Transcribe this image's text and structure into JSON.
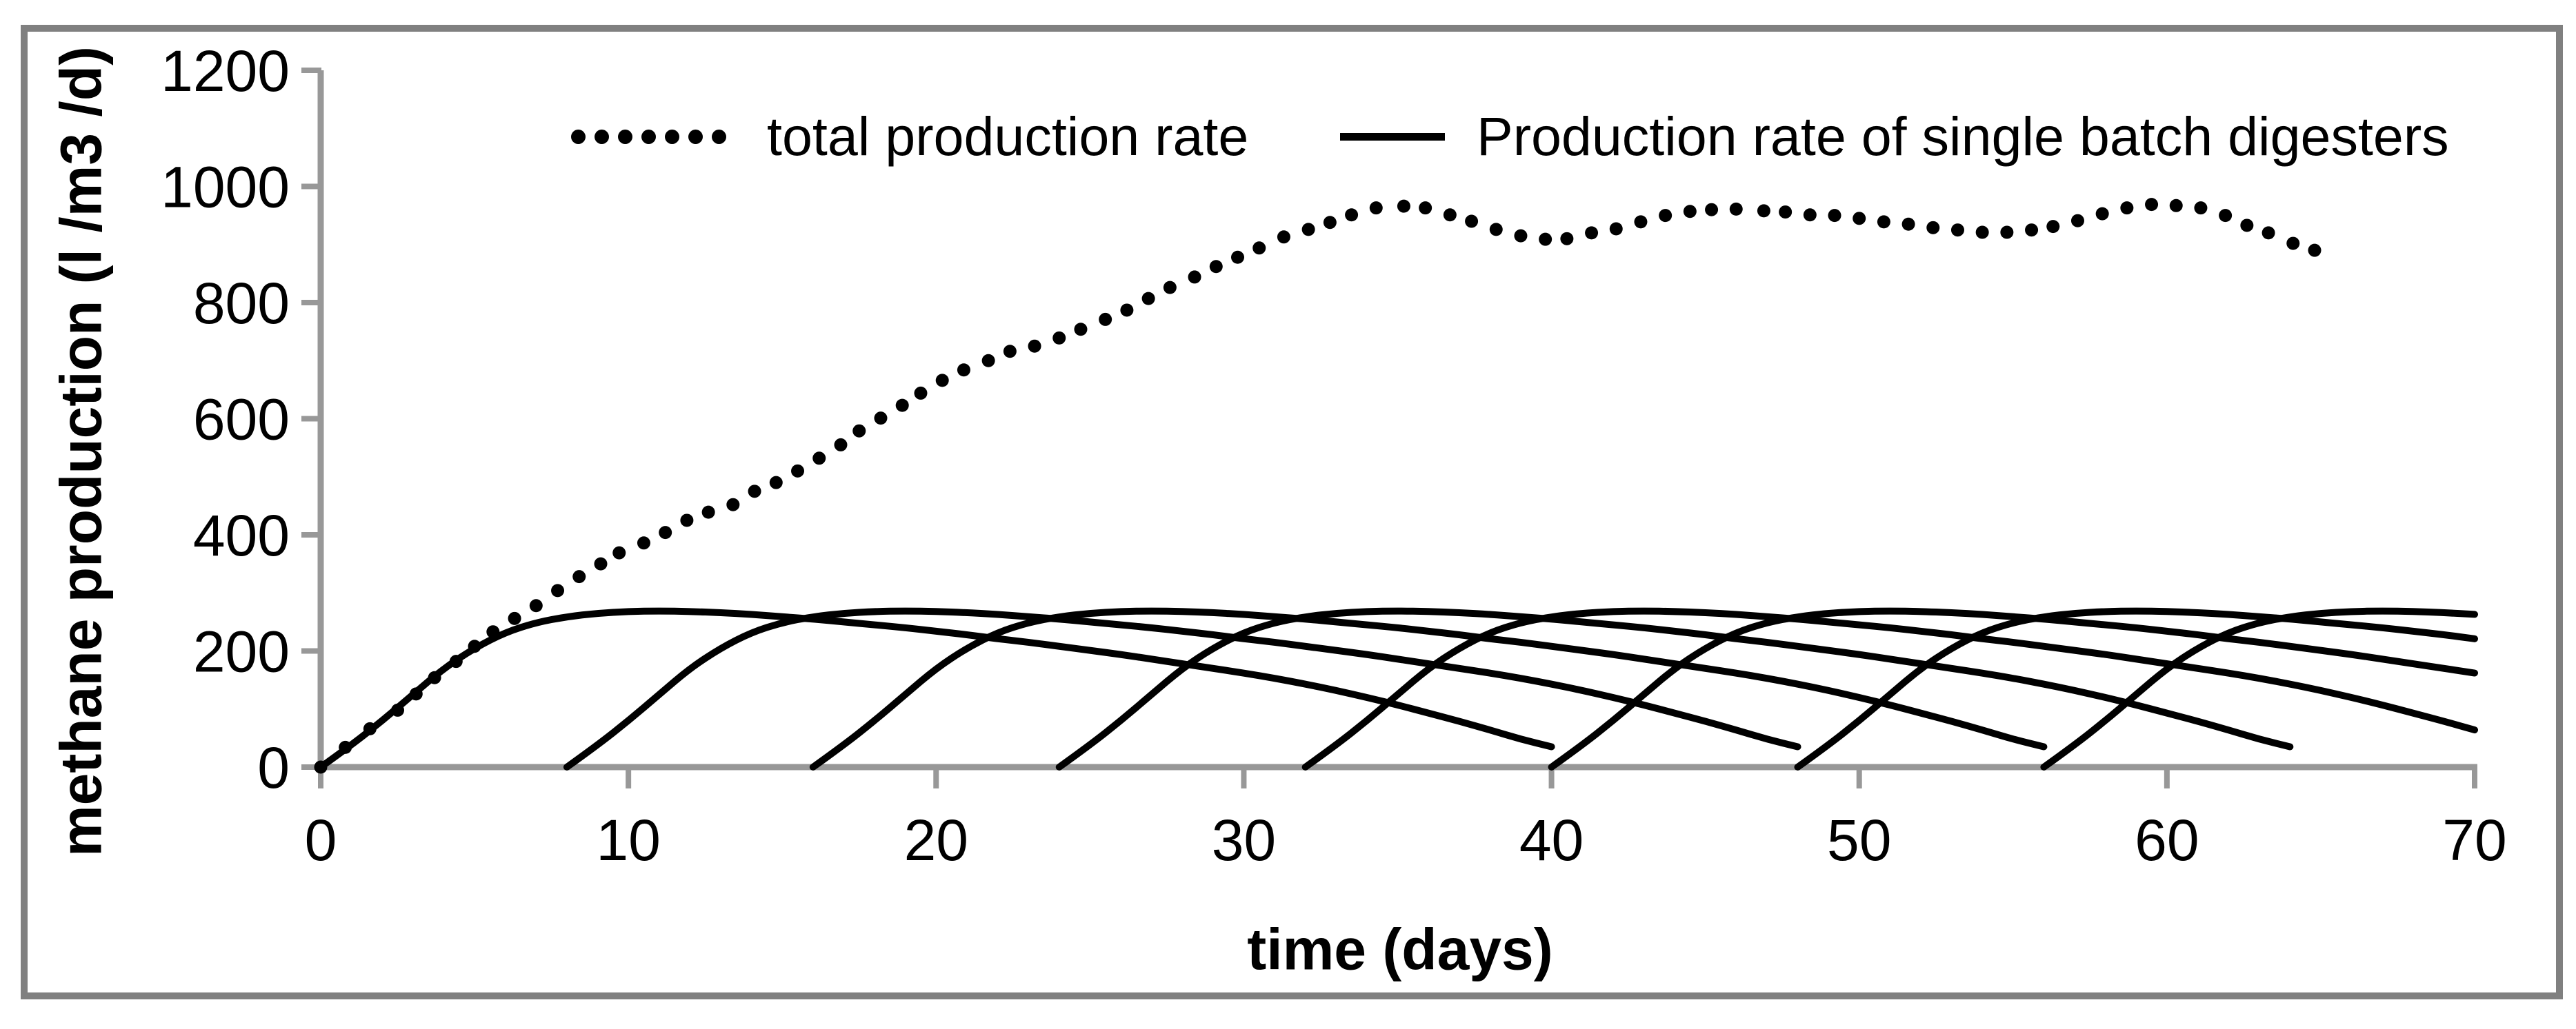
{
  "figure": {
    "background_color": "#ffffff",
    "border_color": "#808080",
    "curve_color": "#000000",
    "axis_color": "#989898"
  },
  "legend": {
    "total": {
      "label": "total production rate",
      "marker": "dots"
    },
    "batch": {
      "label": "Production rate of single batch digesters",
      "marker": "line"
    }
  },
  "chart_data": {
    "type": "line",
    "title": "",
    "xlabel": "time (days)",
    "ylabel": "methane production (l /m3 /d)",
    "xlim": [
      0,
      70
    ],
    "ylim": [
      0,
      1200
    ],
    "x_ticks": [
      0,
      10,
      20,
      30,
      40,
      50,
      60,
      70
    ],
    "y_ticks": [
      0,
      200,
      400,
      600,
      800,
      1000,
      1200
    ],
    "grid": false,
    "legend_position": "top",
    "series": [
      {
        "name": "total production rate",
        "style": "dotted",
        "color": "#000000",
        "points": [
          [
            0,
            0
          ],
          [
            0.8,
            34
          ],
          [
            1.6,
            66
          ],
          [
            2.5,
            98
          ],
          [
            3.1,
            126
          ],
          [
            3.7,
            154
          ],
          [
            4.4,
            182
          ],
          [
            5.0,
            208
          ],
          [
            5.6,
            233
          ],
          [
            6.3,
            256
          ],
          [
            7.0,
            278
          ],
          [
            7.7,
            304
          ],
          [
            8.4,
            328
          ],
          [
            9.1,
            350
          ],
          [
            9.7,
            369
          ],
          [
            10.5,
            386
          ],
          [
            11.2,
            404
          ],
          [
            11.9,
            425
          ],
          [
            12.6,
            439
          ],
          [
            13.4,
            452
          ],
          [
            14.1,
            475
          ],
          [
            14.8,
            490
          ],
          [
            15.5,
            510
          ],
          [
            16.2,
            532
          ],
          [
            16.9,
            555
          ],
          [
            17.5,
            579
          ],
          [
            18.2,
            601
          ],
          [
            18.9,
            623
          ],
          [
            19.5,
            644
          ],
          [
            20.2,
            666
          ],
          [
            20.9,
            684
          ],
          [
            21.7,
            700
          ],
          [
            22.4,
            716
          ],
          [
            23.2,
            725
          ],
          [
            24.0,
            739
          ],
          [
            24.7,
            754
          ],
          [
            25.5,
            771
          ],
          [
            26.2,
            787
          ],
          [
            26.9,
            807
          ],
          [
            27.6,
            826
          ],
          [
            28.4,
            844
          ],
          [
            29.1,
            862
          ],
          [
            29.8,
            878
          ],
          [
            30.5,
            894
          ],
          [
            31.3,
            913
          ],
          [
            32.1,
            926
          ],
          [
            32.8,
            938
          ],
          [
            33.5,
            951
          ],
          [
            34.3,
            963
          ],
          [
            35.2,
            966
          ],
          [
            35.9,
            963
          ],
          [
            36.7,
            951
          ],
          [
            37.4,
            940
          ],
          [
            38.2,
            926
          ],
          [
            39.0,
            915
          ],
          [
            39.8,
            909
          ],
          [
            40.5,
            910
          ],
          [
            41.3,
            920
          ],
          [
            42.1,
            927
          ],
          [
            42.9,
            939
          ],
          [
            43.7,
            950
          ],
          [
            44.5,
            957
          ],
          [
            45.2,
            960
          ],
          [
            46.0,
            961
          ],
          [
            46.9,
            958
          ],
          [
            47.6,
            956
          ],
          [
            48.4,
            951
          ],
          [
            49.2,
            950
          ],
          [
            50.0,
            945
          ],
          [
            50.8,
            939
          ],
          [
            51.6,
            935
          ],
          [
            52.4,
            929
          ],
          [
            53.2,
            925
          ],
          [
            54.0,
            921
          ],
          [
            54.8,
            921
          ],
          [
            55.6,
            925
          ],
          [
            56.3,
            931
          ],
          [
            57.1,
            941
          ],
          [
            57.9,
            953
          ],
          [
            58.7,
            963
          ],
          [
            59.5,
            969
          ],
          [
            60.3,
            967
          ],
          [
            61.1,
            963
          ],
          [
            61.9,
            950
          ],
          [
            62.6,
            933
          ],
          [
            63.3,
            920
          ],
          [
            64.1,
            902
          ],
          [
            64.8,
            890
          ]
        ]
      },
      {
        "name": "Production rate of single batch digesters",
        "style": "solid",
        "color": "#000000",
        "batch_start_days": [
          0,
          8,
          16,
          24,
          32,
          40,
          48,
          56
        ],
        "batch_cycle_days": 40,
        "batch_peak_value": 269,
        "batch_curve_values_by_day": [
          0,
          38,
          80,
          125,
          170,
          205,
          232,
          249,
          259,
          265,
          268,
          269,
          268,
          266,
          263,
          259,
          255,
          250,
          245,
          240,
          234,
          228,
          221,
          215,
          208,
          201,
          194,
          186,
          178,
          170,
          162,
          153,
          143,
          132,
          120,
          107,
          93,
          79,
          64,
          48,
          35
        ]
      }
    ]
  }
}
